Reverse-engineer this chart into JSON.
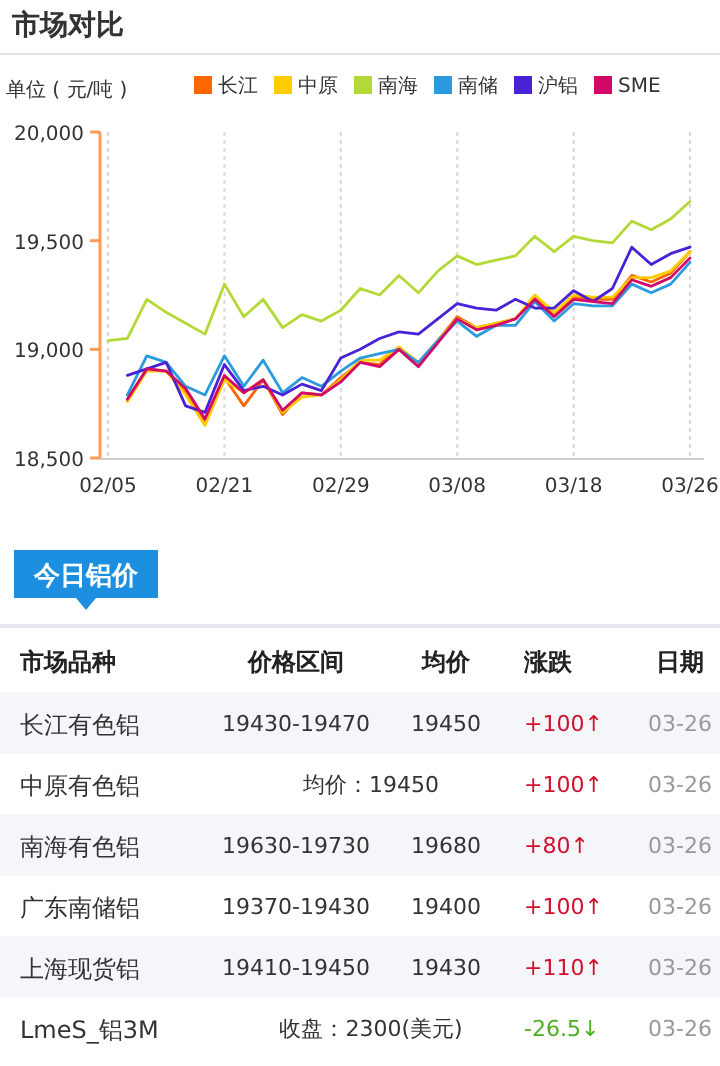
{
  "chart_data": [
    {
      "type": "line",
      "title": "市场对比",
      "ylabel": "单位 ( 元/吨 )",
      "categories": [
        "02/05",
        null,
        null,
        null,
        null,
        null,
        "02/21",
        null,
        null,
        null,
        null,
        null,
        "02/29",
        null,
        null,
        null,
        null,
        null,
        "03/08",
        null,
        null,
        null,
        null,
        null,
        "03/18",
        null,
        null,
        null,
        null,
        null,
        "03/26"
      ],
      "series": [
        {
          "name": "长江",
          "color": "#ff6600",
          "values": [
            null,
            18770,
            18910,
            18900,
            18800,
            18660,
            18870,
            18740,
            18860,
            18700,
            18800,
            18790,
            18870,
            18940,
            18930,
            19010,
            18930,
            19040,
            19150,
            19100,
            19120,
            19140,
            19240,
            19160,
            19240,
            19230,
            19230,
            19340,
            19310,
            19350,
            19450
          ]
        },
        {
          "name": "中原",
          "color": "#ffcc00",
          "values": [
            null,
            18760,
            18900,
            18900,
            18790,
            18650,
            18860,
            18800,
            18860,
            18710,
            18780,
            18790,
            18860,
            18950,
            18950,
            19010,
            18940,
            19040,
            19140,
            19100,
            19120,
            19140,
            19250,
            19170,
            19250,
            19240,
            19240,
            19330,
            19330,
            19360,
            19450
          ]
        },
        {
          "name": "南海",
          "color": "#b3d936",
          "values": [
            19040,
            19050,
            19230,
            19170,
            19120,
            19070,
            19300,
            19150,
            19230,
            19100,
            19160,
            19130,
            19180,
            19280,
            19250,
            19340,
            19260,
            19360,
            19430,
            19390,
            19410,
            19430,
            19520,
            19450,
            19520,
            19500,
            19490,
            19590,
            19550,
            19600,
            19680
          ]
        },
        {
          "name": "南储",
          "color": "#2b9be0",
          "values": [
            null,
            18790,
            18970,
            18940,
            18830,
            18790,
            18970,
            18830,
            18950,
            18800,
            18870,
            18830,
            18900,
            18960,
            18980,
            19000,
            18940,
            19040,
            19130,
            19060,
            19110,
            19110,
            19220,
            19130,
            19210,
            19200,
            19200,
            19300,
            19260,
            19300,
            19400
          ]
        },
        {
          "name": "沪铝",
          "color": "#4a22d6",
          "values": [
            null,
            18880,
            18910,
            18940,
            18740,
            18710,
            18930,
            18810,
            18830,
            18790,
            18840,
            18810,
            18960,
            19000,
            19050,
            19080,
            19070,
            19140,
            19210,
            19190,
            19180,
            19230,
            19190,
            19190,
            19270,
            19220,
            19280,
            19470,
            19390,
            19440,
            19470
          ]
        },
        {
          "name": "SME",
          "color": "#d10a6a",
          "values": [
            null,
            18770,
            18910,
            18900,
            18820,
            18680,
            18880,
            18800,
            18860,
            18720,
            18800,
            18790,
            18850,
            18940,
            18920,
            19000,
            18920,
            19030,
            19140,
            19090,
            19110,
            19140,
            19230,
            19150,
            19230,
            19220,
            19210,
            19320,
            19290,
            19330,
            19420
          ]
        }
      ],
      "ylim": [
        18500,
        20000
      ],
      "yticks": [
        {
          "value": 18500,
          "label": "18,500"
        },
        {
          "value": 19000,
          "label": "19,000"
        },
        {
          "value": 19500,
          "label": "19,500"
        },
        {
          "value": 20000,
          "label": "20,000"
        }
      ],
      "grid": "x",
      "legend": "top",
      "marker": "none",
      "line_style": "solid"
    },
    {
      "type": "other",
      "title": "今日铝价",
      "categories": [
        "市场品种",
        "价格区间",
        "均价",
        "涨跌",
        "日期"
      ],
      "y_categories": [
        "长江有色铝",
        "中原有色铝",
        "南海有色铝",
        "广东南储铝",
        "上海现货铝",
        "LmeS_铝3M"
      ],
      "cell_labels": [
        [
          "19430-19470",
          "19450",
          "+100↑",
          "03-26"
        ],
        [
          "均价：19450",
          null,
          "+100↑",
          "03-26"
        ],
        [
          "19630-19730",
          "19680",
          "+80↑",
          "03-26"
        ],
        [
          "19370-19430",
          "19400",
          "+100↑",
          "03-26"
        ],
        [
          "19410-19450",
          "19430",
          "+110↑",
          "03-26"
        ],
        [
          "收盘：2300(美元)",
          null,
          "-26.5↓",
          "03-26"
        ]
      ],
      "colors": [
        "#d0102e",
        "#d0102e",
        "#d0102e",
        "#d0102e",
        "#d0102e",
        "#4caf1e"
      ]
    }
  ]
}
